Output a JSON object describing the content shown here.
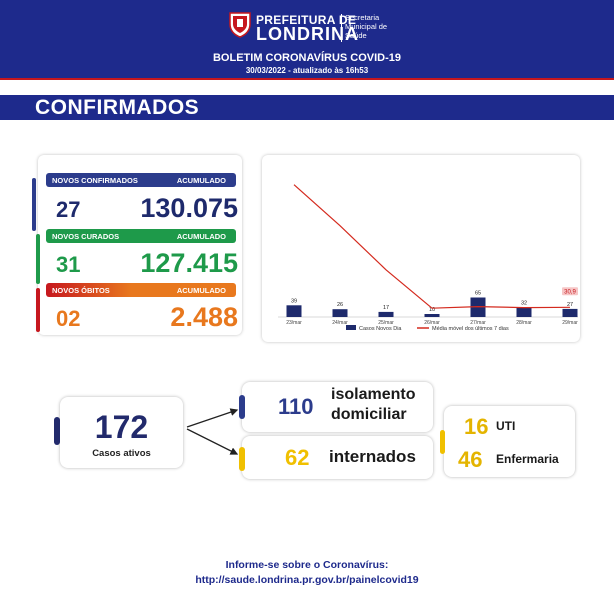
{
  "header": {
    "pref_top": "PREFEITURA DE",
    "pref_main": "LONDRINA",
    "secretaria": [
      "Secretaria",
      "Municipal de",
      "Saúde"
    ],
    "title": "BOLETIM CORONAVÍRUS COVID-19",
    "date": "30/03/2022 - atualizado às 16h53",
    "colors": {
      "navy": "#1e2a8c",
      "red": "#c6171e"
    }
  },
  "section": {
    "title": "CONFIRMADOS"
  },
  "stats": {
    "confirmados": {
      "label": "NOVOS CONFIRMADOS",
      "acc_label": "ACUMULADO",
      "new": "27",
      "total": "130.075",
      "color": "#2c3c8c"
    },
    "curados": {
      "label": "NOVOS CURADOS",
      "acc_label": "ACUMULADO",
      "new": "31",
      "total": "127.415",
      "color": "#1e9a4a"
    },
    "obitos": {
      "label": "NOVOS ÓBITOS",
      "acc_label": "ACUMULADO",
      "new": "02",
      "total": "2.488",
      "color": "#e8781e"
    }
  },
  "chart_data": {
    "type": "bar",
    "categories": [
      "23/mar",
      "24/mar",
      "25/mar",
      "26/mar",
      "27/mar",
      "28/mar",
      "29/mar"
    ],
    "series": [
      {
        "name": "Casos Novos Dia",
        "kind": "bar",
        "color": "#1e2a6c",
        "values": [
          39,
          26,
          17,
          10,
          65,
          32,
          27
        ]
      },
      {
        "name": "Média móvel dos últimos 7 dias",
        "kind": "line",
        "color": "#d42a1e",
        "values": [
          420,
          290,
          150,
          28,
          33,
          30,
          30.9
        ]
      }
    ],
    "annotations": [
      {
        "text": "30,9",
        "category": "29/mar"
      }
    ],
    "legend": "bottom"
  },
  "active": {
    "total": "172",
    "total_label": "Casos ativos",
    "isolamento": {
      "value": "110",
      "label_line1": "isolamento",
      "label_line2": "domiciliar"
    },
    "internados": {
      "value": "62",
      "label": "internados"
    },
    "uti": {
      "value": "16",
      "label": "UTI"
    },
    "enfermaria": {
      "value": "46",
      "label": "Enfermaria"
    },
    "colors": {
      "navy": "#222a6c",
      "yellow": "#f0c000",
      "gold": "#e4b400"
    }
  },
  "footer": {
    "line1": "Informe-se sobre o Coronavírus:",
    "line2": "http://saude.londrina.pr.gov.br/painelcovid19"
  }
}
